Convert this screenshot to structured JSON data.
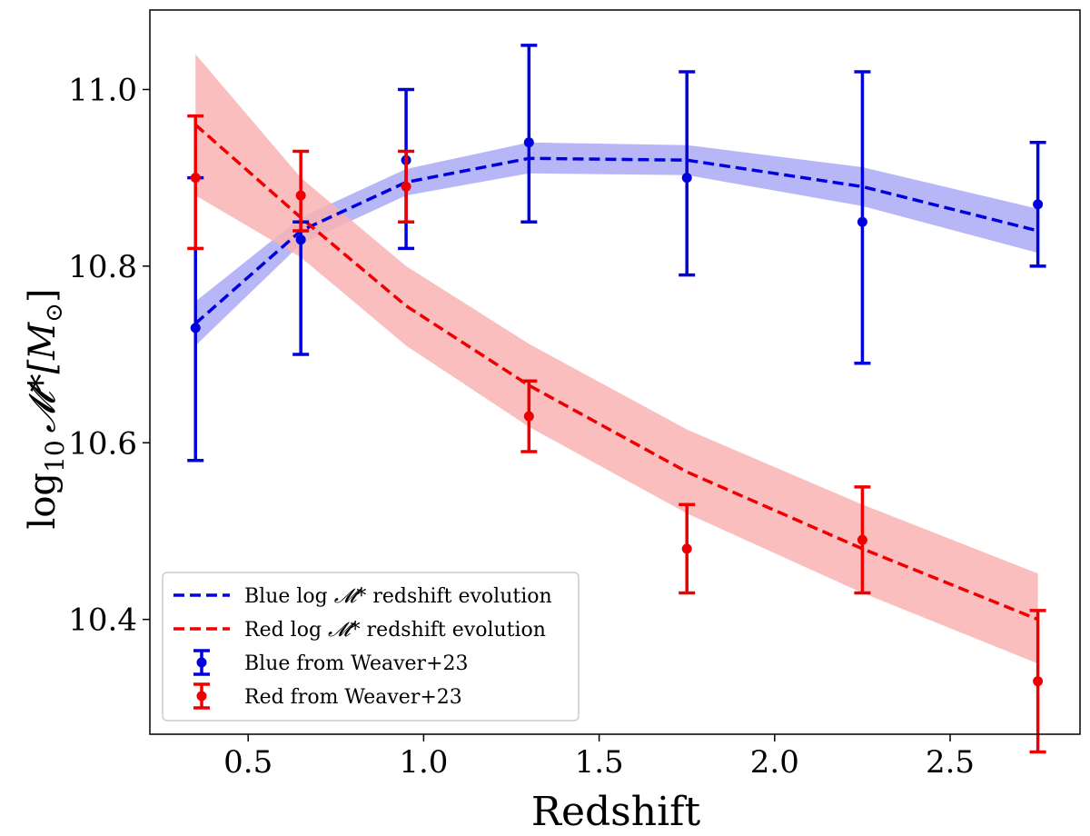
{
  "chart_data": {
    "type": "line",
    "title": "",
    "xlabel": "Redshift",
    "ylabel": {
      "prefix": "log",
      "sub": "10",
      "symbol": "𝓜*",
      "unit": "[M",
      "unit_sun": "⊙",
      "unit_close": "]"
    },
    "xlim": [
      0.22,
      2.87
    ],
    "ylim": [
      10.27,
      11.09
    ],
    "xticks": [
      0.5,
      1.0,
      1.5,
      2.0,
      2.5
    ],
    "xtick_labels": [
      "0.5",
      "1.0",
      "1.5",
      "2.0",
      "2.5"
    ],
    "yticks": [
      10.4,
      10.6,
      10.8,
      11.0
    ],
    "ytick_labels": [
      "10.4",
      "10.6",
      "10.8",
      "11.0"
    ],
    "grid": false,
    "legend_position": "lower-left",
    "colors": {
      "blue": "#0000dd",
      "red": "#ee0000",
      "blue_band": "#aaaaf6",
      "red_band": "#f9b3b3"
    },
    "series": [
      {
        "name": "Blue log 𝓜* redshift evolution",
        "kind": "model",
        "color_key": "blue",
        "x": [
          0.35,
          0.65,
          0.95,
          1.3,
          1.75,
          2.25,
          2.75
        ],
        "values": [
          10.735,
          10.84,
          10.895,
          10.922,
          10.92,
          10.89,
          10.84
        ],
        "band_low": [
          10.71,
          10.825,
          10.88,
          10.905,
          10.903,
          10.868,
          10.815
        ],
        "band_high": [
          10.76,
          10.855,
          10.91,
          10.94,
          10.937,
          10.912,
          10.865
        ]
      },
      {
        "name": "Red log 𝓜* redshift evolution",
        "kind": "model",
        "color_key": "red",
        "x": [
          0.35,
          0.65,
          0.95,
          1.3,
          1.75,
          2.25,
          2.75
        ],
        "values": [
          10.96,
          10.855,
          10.755,
          10.665,
          10.567,
          10.48,
          10.4
        ],
        "band_low": [
          10.88,
          10.81,
          10.71,
          10.618,
          10.52,
          10.43,
          10.35
        ],
        "band_high": [
          11.04,
          10.9,
          10.8,
          10.712,
          10.615,
          10.53,
          10.452
        ]
      },
      {
        "name": "Blue from Weaver+23",
        "kind": "data",
        "color_key": "blue",
        "x": [
          0.35,
          0.65,
          0.95,
          1.3,
          1.75,
          2.25,
          2.75
        ],
        "values": [
          10.73,
          10.83,
          10.92,
          10.94,
          10.9,
          10.85,
          10.87
        ],
        "err_low": [
          10.58,
          10.7,
          10.82,
          10.85,
          10.79,
          10.69,
          10.8
        ],
        "err_high": [
          10.9,
          10.85,
          11.0,
          11.05,
          11.02,
          11.02,
          10.94
        ]
      },
      {
        "name": "Red from Weaver+23",
        "kind": "data",
        "color_key": "red",
        "x": [
          0.35,
          0.65,
          0.95,
          1.3,
          1.75,
          2.25,
          2.75
        ],
        "values": [
          10.9,
          10.88,
          10.89,
          10.63,
          10.48,
          10.49,
          10.33
        ],
        "err_low": [
          10.82,
          10.84,
          10.85,
          10.59,
          10.43,
          10.43,
          10.25
        ],
        "err_high": [
          10.97,
          10.93,
          10.93,
          10.67,
          10.53,
          10.55,
          10.41
        ]
      }
    ],
    "legend": {
      "entries": [
        {
          "prefix": "Blue log ",
          "symbol": "𝓜*",
          "suffix": " redshift evolution",
          "color_key": "blue",
          "kind": "line"
        },
        {
          "prefix": "Red log ",
          "symbol": "𝓜*",
          "suffix": " redshift evolution",
          "color_key": "red",
          "kind": "line"
        },
        {
          "prefix": "Blue from Weaver+23",
          "symbol": "",
          "suffix": "",
          "color_key": "blue",
          "kind": "errorbar"
        },
        {
          "prefix": "Red from Weaver+23",
          "symbol": "",
          "suffix": "",
          "color_key": "red",
          "kind": "errorbar"
        }
      ]
    }
  }
}
